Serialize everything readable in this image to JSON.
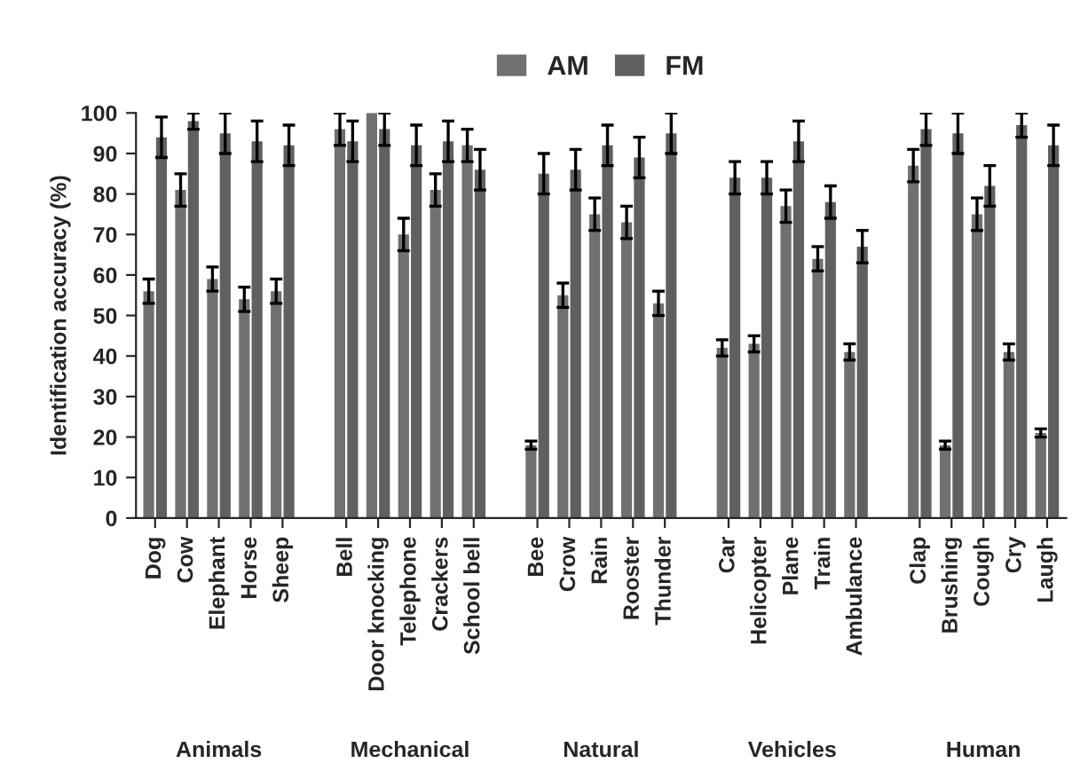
{
  "chart_data": {
    "type": "bar",
    "ylabel": "Identification accuracy (%)",
    "categories": [
      "Dog",
      "Cow",
      "Elephant",
      "Horse",
      "Sheep",
      null,
      "Bell",
      "Door knocking",
      "Telephone",
      "Crackers",
      "School bell",
      null,
      "Bee",
      "Crow",
      "Rain",
      "Rooster",
      "Thunder",
      null,
      "Car",
      "Helicopter",
      "Plane",
      "Train",
      "Ambulance",
      null,
      "Clap",
      "Brushing",
      "Cough",
      "Cry",
      "Laugh"
    ],
    "series": [
      {
        "name": "AM",
        "color": "#707070",
        "values": [
          56,
          81,
          59,
          54,
          56,
          null,
          96,
          100,
          70,
          81,
          92,
          null,
          18,
          55,
          75,
          73,
          53,
          null,
          42,
          43,
          77,
          64,
          41,
          null,
          87,
          18,
          75,
          41,
          21
        ],
        "errors": [
          3,
          4,
          3,
          3,
          3,
          null,
          4,
          null,
          4,
          4,
          4,
          null,
          1,
          3,
          4,
          4,
          3,
          null,
          2,
          2,
          4,
          3,
          2,
          null,
          4,
          1,
          4,
          2,
          1
        ]
      },
      {
        "name": "FM",
        "color": "#606060",
        "values": [
          94,
          98,
          95,
          93,
          92,
          null,
          93,
          96,
          92,
          93,
          86,
          null,
          85,
          86,
          92,
          89,
          95,
          null,
          84,
          84,
          93,
          78,
          67,
          null,
          96,
          95,
          82,
          97,
          92
        ],
        "errors": [
          5,
          2,
          5,
          5,
          5,
          null,
          5,
          4,
          5,
          5,
          5,
          null,
          5,
          5,
          5,
          5,
          5,
          null,
          4,
          4,
          5,
          4,
          4,
          null,
          4,
          5,
          5,
          3,
          5
        ]
      }
    ],
    "ylim": [
      0,
      100
    ],
    "yticks": [
      0,
      10,
      20,
      30,
      40,
      50,
      60,
      70,
      80,
      90,
      100
    ],
    "grid": false,
    "legend": "top",
    "annotations": [
      "Animals",
      "Mechanical",
      "Natural",
      "Vehicles",
      "Human"
    ]
  }
}
